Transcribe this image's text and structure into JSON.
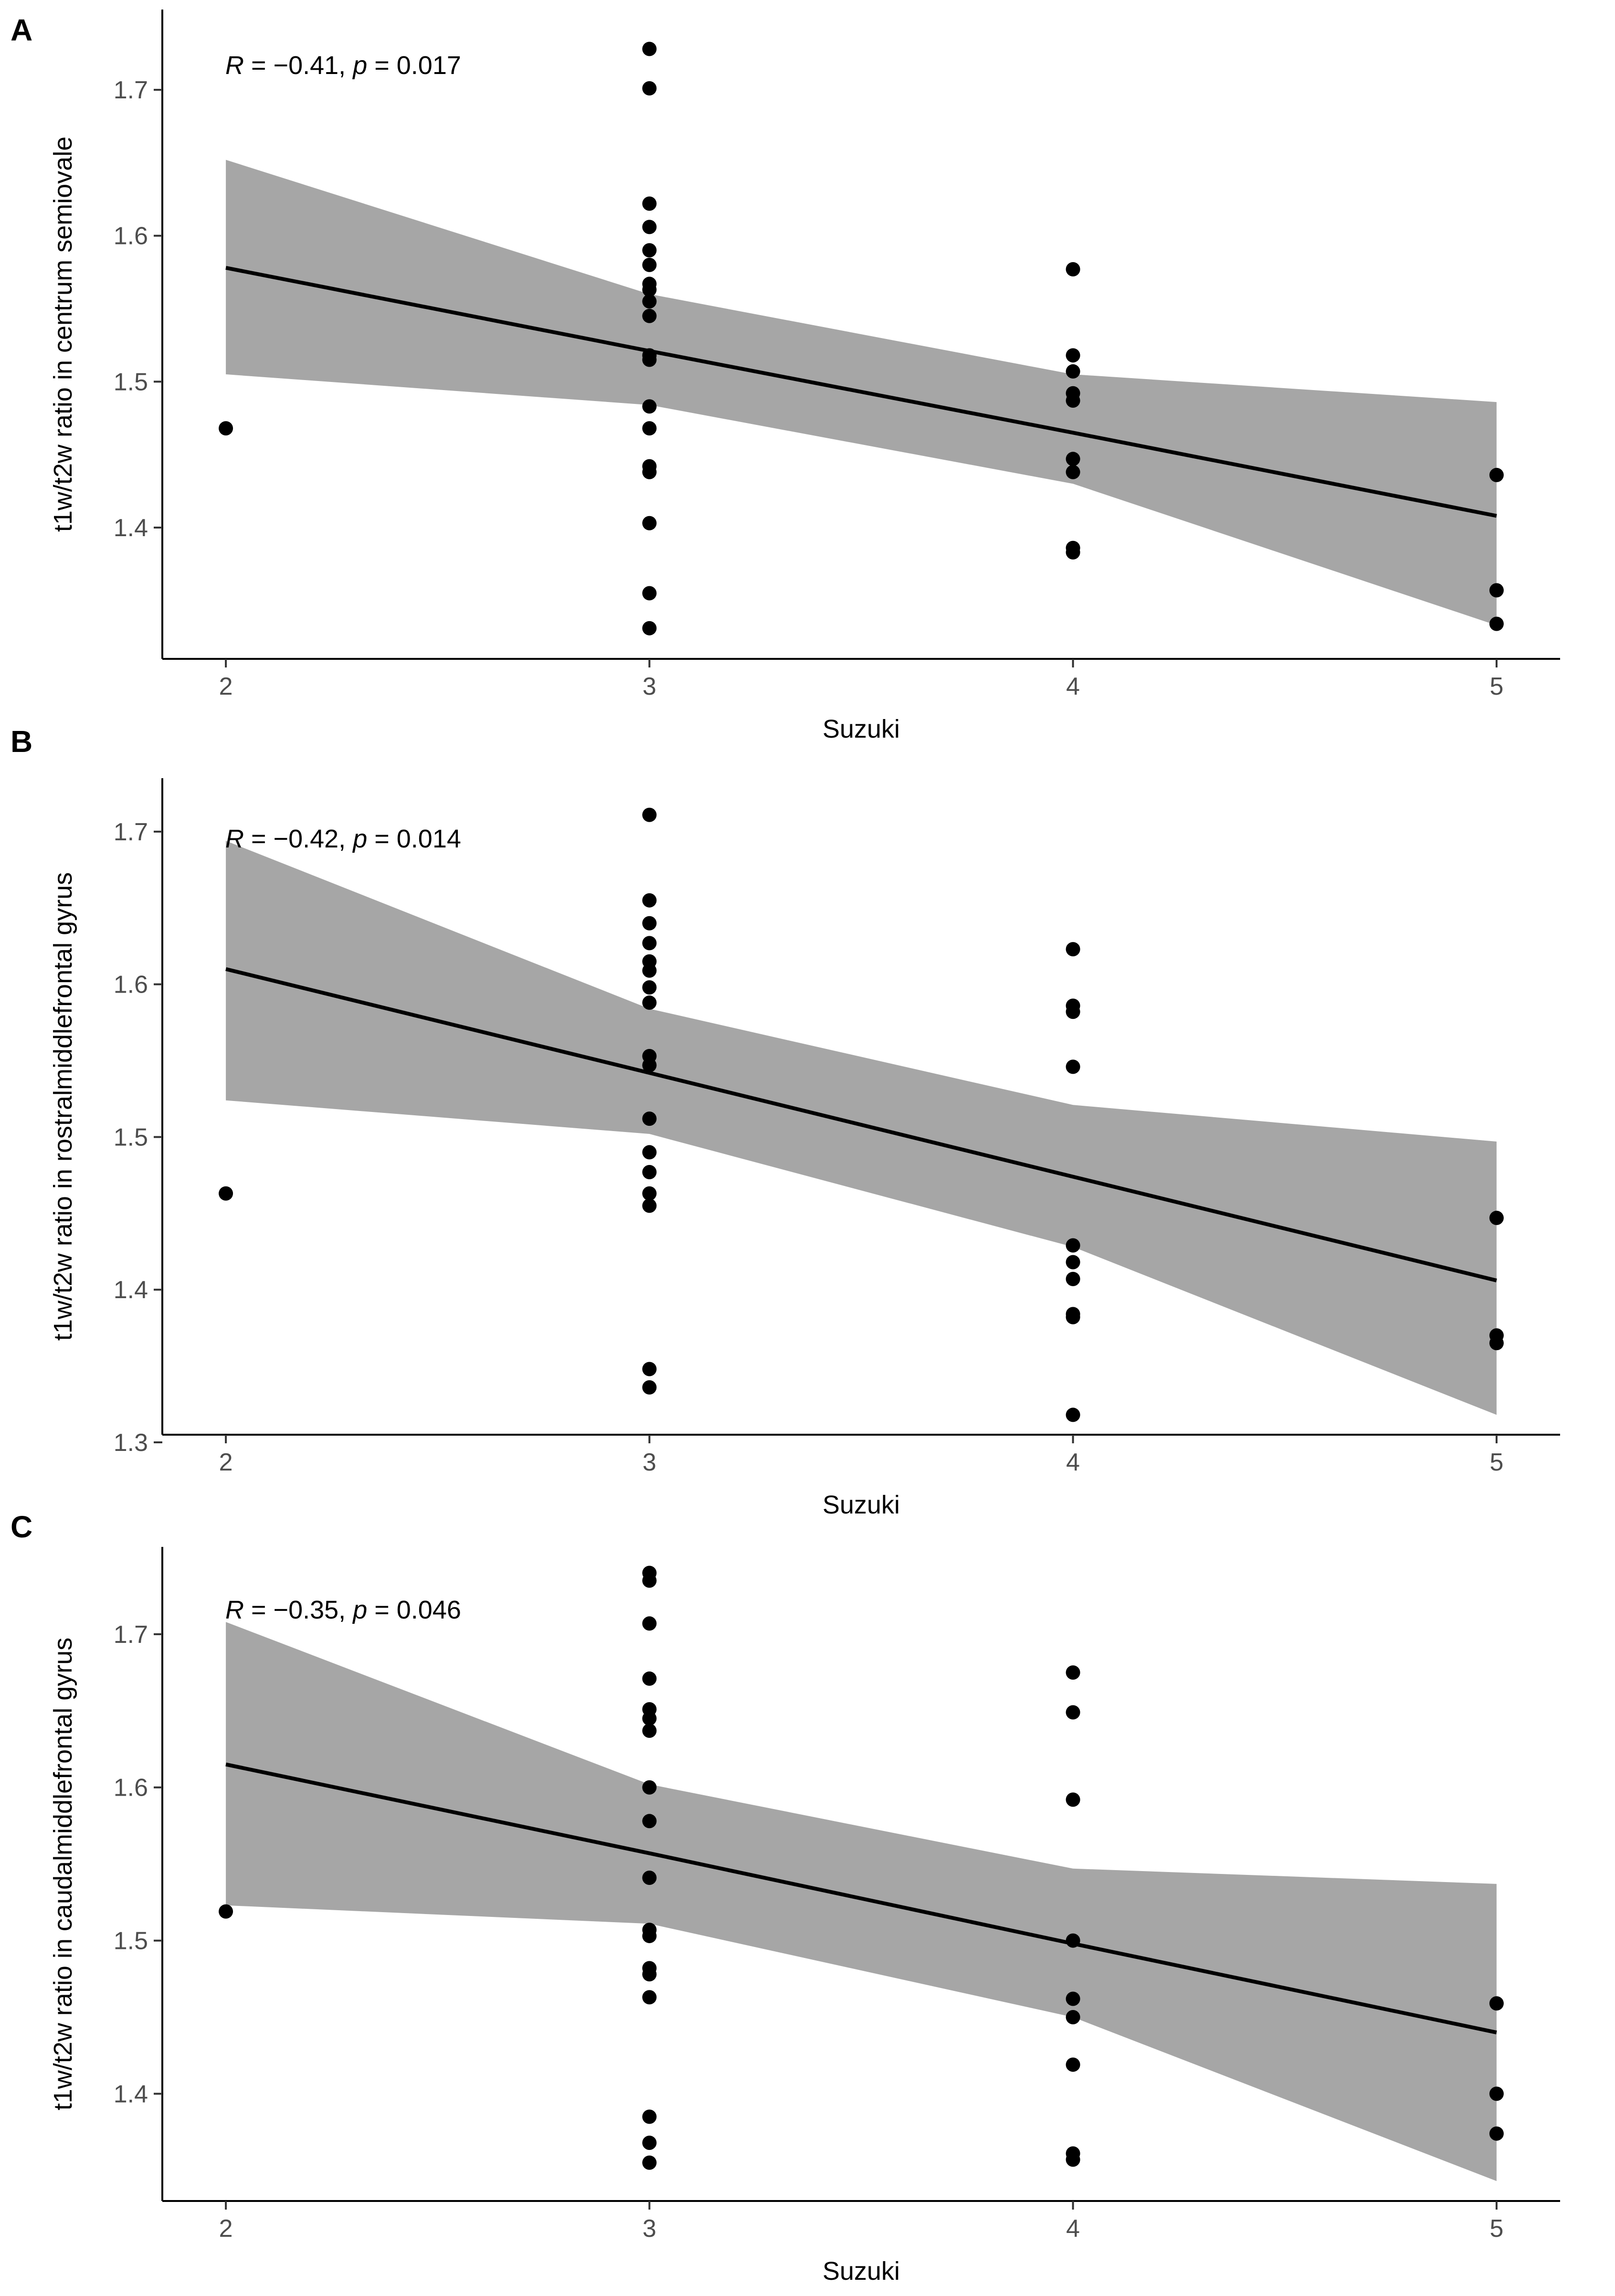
{
  "colors": {
    "band": "#a6a6a6",
    "line": "#000000",
    "point": "#000000",
    "axis": "#000000"
  },
  "chart_data": [
    {
      "panel": "A",
      "type": "scatter",
      "xlabel": "Suzuki",
      "ylabel": "t1w/t2w ratio in centrum semiovale",
      "x_ticks": [
        2,
        3,
        4,
        5
      ],
      "y_ticks": [
        1.4,
        1.5,
        1.6,
        1.7
      ],
      "xlim": [
        1.85,
        5.15
      ],
      "ylim": [
        1.31,
        1.755
      ],
      "stat": {
        "r_symbol": "R",
        "r_value": " = −0.41, ",
        "p_symbol": "p",
        "p_value": " = 0.017"
      },
      "fit": {
        "x": [
          2,
          3,
          4,
          5
        ],
        "y": [
          1.578,
          1.521,
          1.465,
          1.408
        ]
      },
      "band": {
        "x": [
          2,
          3,
          4,
          5
        ],
        "lower": [
          1.505,
          1.484,
          1.43,
          1.333
        ],
        "upper": [
          1.652,
          1.56,
          1.505,
          1.486
        ]
      },
      "points": [
        {
          "x": 2,
          "y": 1.468
        },
        {
          "x": 3,
          "y": 1.728
        },
        {
          "x": 3,
          "y": 1.701
        },
        {
          "x": 3,
          "y": 1.622
        },
        {
          "x": 3,
          "y": 1.606
        },
        {
          "x": 3,
          "y": 1.59
        },
        {
          "x": 3,
          "y": 1.58
        },
        {
          "x": 3,
          "y": 1.567
        },
        {
          "x": 3,
          "y": 1.563
        },
        {
          "x": 3,
          "y": 1.555
        },
        {
          "x": 3,
          "y": 1.545
        },
        {
          "x": 3,
          "y": 1.518
        },
        {
          "x": 3,
          "y": 1.515
        },
        {
          "x": 3,
          "y": 1.483
        },
        {
          "x": 3,
          "y": 1.468
        },
        {
          "x": 3,
          "y": 1.442
        },
        {
          "x": 3,
          "y": 1.438
        },
        {
          "x": 3,
          "y": 1.403
        },
        {
          "x": 3,
          "y": 1.355
        },
        {
          "x": 3,
          "y": 1.331
        },
        {
          "x": 4,
          "y": 1.577
        },
        {
          "x": 4,
          "y": 1.518
        },
        {
          "x": 4,
          "y": 1.507
        },
        {
          "x": 4,
          "y": 1.492
        },
        {
          "x": 4,
          "y": 1.487
        },
        {
          "x": 4,
          "y": 1.447
        },
        {
          "x": 4,
          "y": 1.438
        },
        {
          "x": 4,
          "y": 1.386
        },
        {
          "x": 4,
          "y": 1.383
        },
        {
          "x": 5,
          "y": 1.436
        },
        {
          "x": 5,
          "y": 1.357
        },
        {
          "x": 5,
          "y": 1.334
        }
      ]
    },
    {
      "panel": "B",
      "type": "scatter",
      "xlabel": "Suzuki",
      "ylabel": "t1w/t2w ratio in rostralmiddlefrontal gyrus",
      "x_ticks": [
        2,
        3,
        4,
        5
      ],
      "y_ticks": [
        1.3,
        1.4,
        1.5,
        1.6,
        1.7
      ],
      "xlim": [
        1.85,
        5.15
      ],
      "ylim": [
        1.305,
        1.735
      ],
      "stat": {
        "r_symbol": "R",
        "r_value": " = −0.42, ",
        "p_symbol": "p",
        "p_value": " = 0.014"
      },
      "fit": {
        "x": [
          2,
          3,
          4,
          5
        ],
        "y": [
          1.61,
          1.542,
          1.474,
          1.406
        ]
      },
      "band": {
        "x": [
          2,
          3,
          4,
          5
        ],
        "lower": [
          1.524,
          1.502,
          1.428,
          1.318
        ],
        "upper": [
          1.694,
          1.584,
          1.521,
          1.497
        ]
      },
      "points": [
        {
          "x": 2,
          "y": 1.463
        },
        {
          "x": 3,
          "y": 1.711
        },
        {
          "x": 3,
          "y": 1.655
        },
        {
          "x": 3,
          "y": 1.64
        },
        {
          "x": 3,
          "y": 1.627
        },
        {
          "x": 3,
          "y": 1.615
        },
        {
          "x": 3,
          "y": 1.609
        },
        {
          "x": 3,
          "y": 1.598
        },
        {
          "x": 3,
          "y": 1.588
        },
        {
          "x": 3,
          "y": 1.553
        },
        {
          "x": 3,
          "y": 1.547
        },
        {
          "x": 3,
          "y": 1.512
        },
        {
          "x": 3,
          "y": 1.49
        },
        {
          "x": 3,
          "y": 1.477
        },
        {
          "x": 3,
          "y": 1.463
        },
        {
          "x": 3,
          "y": 1.455
        },
        {
          "x": 3,
          "y": 1.348
        },
        {
          "x": 3,
          "y": 1.336
        },
        {
          "x": 4,
          "y": 1.623
        },
        {
          "x": 4,
          "y": 1.586
        },
        {
          "x": 4,
          "y": 1.582
        },
        {
          "x": 4,
          "y": 1.546
        },
        {
          "x": 4,
          "y": 1.429
        },
        {
          "x": 4,
          "y": 1.418
        },
        {
          "x": 4,
          "y": 1.407
        },
        {
          "x": 4,
          "y": 1.384
        },
        {
          "x": 4,
          "y": 1.382
        },
        {
          "x": 4,
          "y": 1.318
        },
        {
          "x": 5,
          "y": 1.447
        },
        {
          "x": 5,
          "y": 1.37
        },
        {
          "x": 5,
          "y": 1.365
        }
      ]
    },
    {
      "panel": "C",
      "type": "scatter",
      "xlabel": "Suzuki",
      "ylabel": "t1w/t2w ratio in caudalmiddlefrontal gyrus",
      "x_ticks": [
        2,
        3,
        4,
        5
      ],
      "y_ticks": [
        1.4,
        1.5,
        1.6,
        1.7
      ],
      "xlim": [
        1.85,
        5.15
      ],
      "ylim": [
        1.33,
        1.757
      ],
      "stat": {
        "r_symbol": "R",
        "r_value": " = −0.35, ",
        "p_symbol": "p",
        "p_value": " = 0.046"
      },
      "fit": {
        "x": [
          2,
          3,
          4,
          5
        ],
        "y": [
          1.615,
          1.557,
          1.498,
          1.44
        ]
      },
      "band": {
        "x": [
          2,
          3,
          4,
          5
        ],
        "lower": [
          1.523,
          1.511,
          1.45,
          1.343
        ],
        "upper": [
          1.708,
          1.602,
          1.547,
          1.537
        ]
      },
      "points": [
        {
          "x": 2,
          "y": 1.519
        },
        {
          "x": 3,
          "y": 1.74
        },
        {
          "x": 3,
          "y": 1.735
        },
        {
          "x": 3,
          "y": 1.707
        },
        {
          "x": 3,
          "y": 1.671
        },
        {
          "x": 3,
          "y": 1.651
        },
        {
          "x": 3,
          "y": 1.645
        },
        {
          "x": 3,
          "y": 1.637
        },
        {
          "x": 3,
          "y": 1.6
        },
        {
          "x": 3,
          "y": 1.578
        },
        {
          "x": 3,
          "y": 1.541
        },
        {
          "x": 3,
          "y": 1.507
        },
        {
          "x": 3,
          "y": 1.503
        },
        {
          "x": 3,
          "y": 1.482
        },
        {
          "x": 3,
          "y": 1.478
        },
        {
          "x": 3,
          "y": 1.463
        },
        {
          "x": 3,
          "y": 1.385
        },
        {
          "x": 3,
          "y": 1.368
        },
        {
          "x": 3,
          "y": 1.355
        },
        {
          "x": 4,
          "y": 1.675
        },
        {
          "x": 4,
          "y": 1.649
        },
        {
          "x": 4,
          "y": 1.592
        },
        {
          "x": 4,
          "y": 1.5
        },
        {
          "x": 4,
          "y": 1.462
        },
        {
          "x": 4,
          "y": 1.45
        },
        {
          "x": 4,
          "y": 1.419
        },
        {
          "x": 4,
          "y": 1.361
        },
        {
          "x": 4,
          "y": 1.357
        },
        {
          "x": 5,
          "y": 1.459
        },
        {
          "x": 5,
          "y": 1.4
        },
        {
          "x": 5,
          "y": 1.374
        }
      ]
    }
  ]
}
